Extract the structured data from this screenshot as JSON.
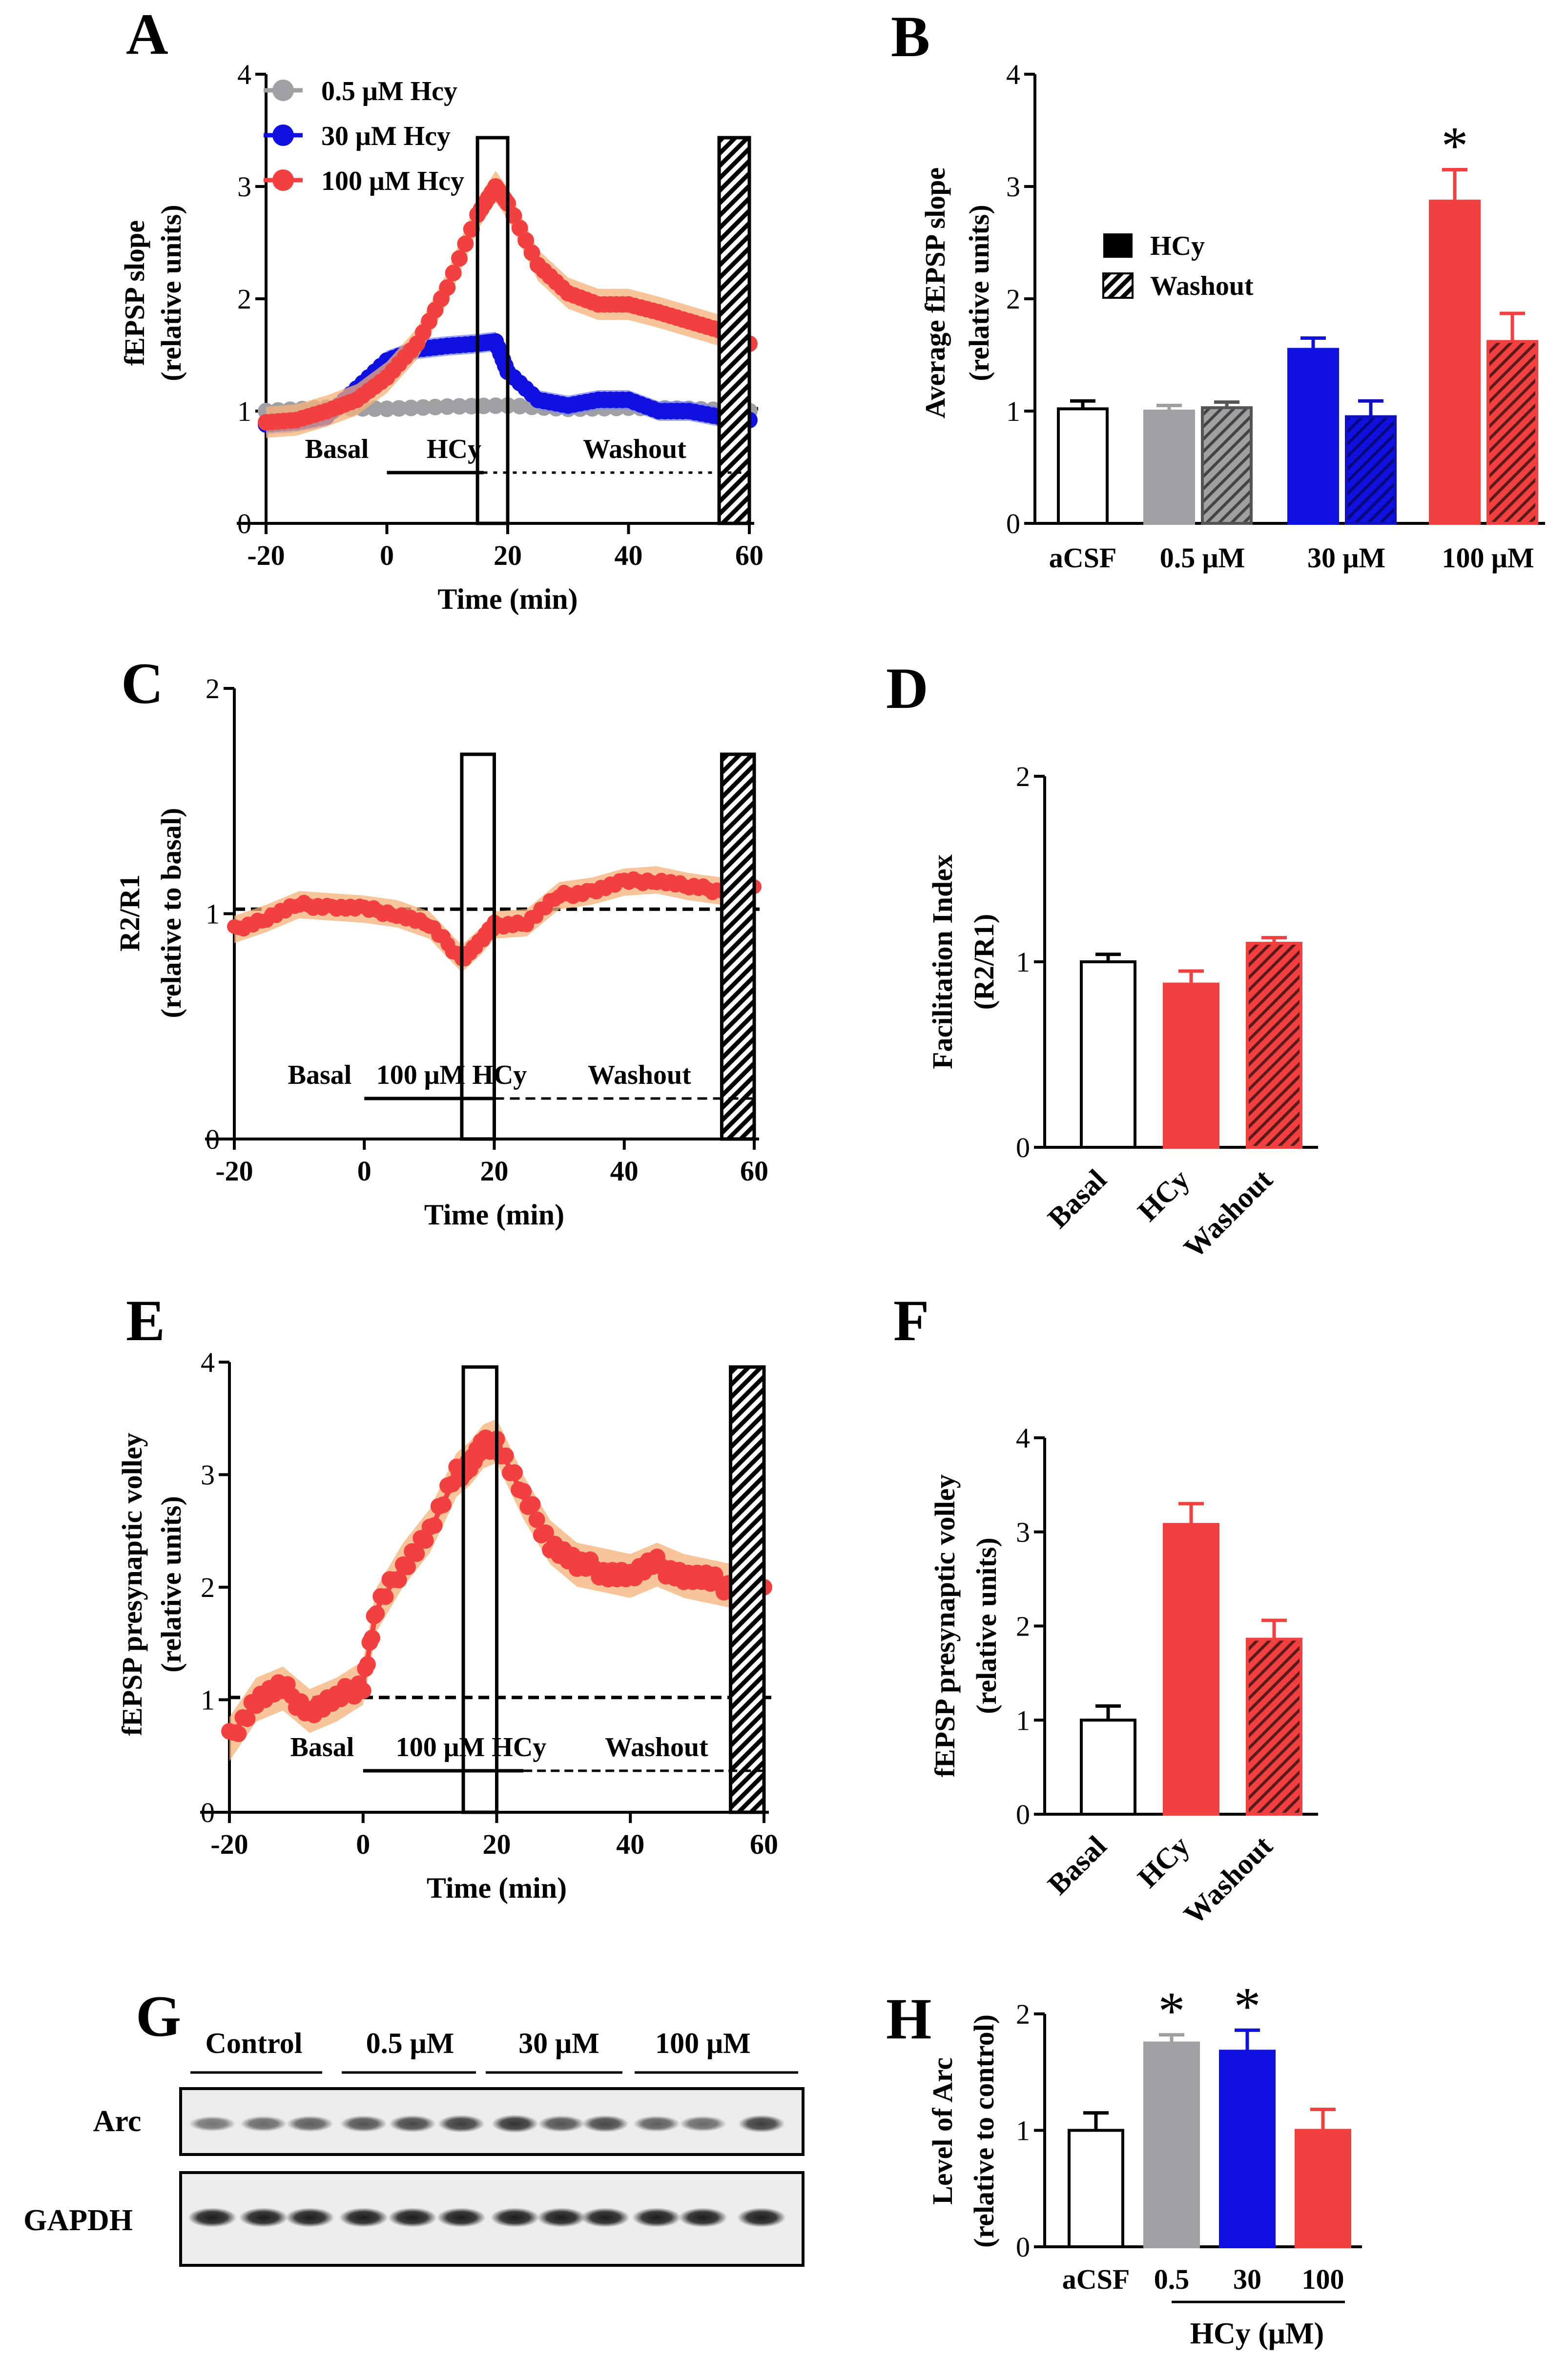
{
  "colors": {
    "grey": "#a0a0a4",
    "blue": "#1010e0",
    "red": "#f24040",
    "band": "#f6b27a"
  },
  "chart_data": [
    {
      "panel": "A",
      "type": "line",
      "xlabel": "Time (min)",
      "ylabel": [
        "fEPSP slope",
        "(relative units)"
      ],
      "xlim": [
        -20,
        60
      ],
      "ylim": [
        0,
        4
      ],
      "xticks": [
        "-20",
        "0",
        "20",
        "40",
        "60"
      ],
      "yticks": [
        "0",
        "1",
        "2",
        "3",
        "4"
      ],
      "legend": [
        "0.5 μM Hcy",
        "30 μM Hcy",
        "100 μM Hcy"
      ],
      "annotations": [
        "Basal",
        "HCy",
        "Washout"
      ],
      "series": [
        {
          "name": "0.5 μM Hcy",
          "color": "#a0a0a4",
          "x": [
            -20,
            -10,
            0,
            10,
            20,
            30,
            40,
            50,
            60
          ],
          "y": [
            1.0,
            1.03,
            1.02,
            1.04,
            1.05,
            1.02,
            1.03,
            1.02,
            1.0
          ]
        },
        {
          "name": "30 μM Hcy",
          "color": "#1010e0",
          "x": [
            -20,
            -15,
            -10,
            -5,
            0,
            5,
            10,
            15,
            18,
            20,
            25,
            30,
            35,
            40,
            45,
            50,
            55,
            60
          ],
          "y": [
            0.88,
            0.9,
            0.95,
            1.2,
            1.45,
            1.55,
            1.58,
            1.6,
            1.62,
            1.35,
            1.1,
            1.05,
            1.1,
            1.1,
            1.0,
            1.0,
            0.95,
            0.92
          ]
        },
        {
          "name": "100 μM Hcy",
          "color": "#f24040",
          "x": [
            -20,
            -15,
            -10,
            -5,
            0,
            5,
            10,
            15,
            18,
            20,
            25,
            30,
            35,
            40,
            45,
            50,
            55,
            60
          ],
          "y": [
            0.9,
            0.92,
            1.0,
            1.1,
            1.3,
            1.6,
            2.1,
            2.75,
            3.0,
            2.85,
            2.3,
            2.05,
            1.95,
            1.95,
            1.88,
            1.8,
            1.72,
            1.6
          ]
        }
      ]
    },
    {
      "panel": "B",
      "type": "bar",
      "ylabel": [
        "Average fEPSP slope",
        "(relative units)"
      ],
      "ylim": [
        0,
        4
      ],
      "yticks": [
        "0",
        "1",
        "2",
        "3",
        "4"
      ],
      "categories": [
        "aCSF",
        "0.5 μM",
        "30 μM",
        "100 μM"
      ],
      "legend": [
        "HCy",
        "Washout"
      ],
      "bars": [
        {
          "group": "aCSF",
          "cond": "aCSF",
          "value": 1.02,
          "err": 0.07
        },
        {
          "group": "0.5 μM",
          "cond": "HCy",
          "value": 1.0,
          "err": 0.05
        },
        {
          "group": "0.5 μM",
          "cond": "Washout",
          "value": 1.03,
          "err": 0.05
        },
        {
          "group": "30 μM",
          "cond": "HCy",
          "value": 1.55,
          "err": 0.1
        },
        {
          "group": "30 μM",
          "cond": "Washout",
          "value": 0.95,
          "err": 0.14
        },
        {
          "group": "100 μM",
          "cond": "HCy",
          "value": 2.87,
          "err": 0.28,
          "sig": "*"
        },
        {
          "group": "100 μM",
          "cond": "Washout",
          "value": 1.62,
          "err": 0.25
        }
      ]
    },
    {
      "panel": "C",
      "type": "line",
      "xlabel": "Time (min)",
      "ylabel": [
        "R2/R1",
        "(relative to basal)"
      ],
      "xlim": [
        -20,
        60
      ],
      "ylim": [
        0,
        2
      ],
      "xticks": [
        "-20",
        "0",
        "20",
        "40",
        "60"
      ],
      "yticks": [
        "0",
        "1",
        "2"
      ],
      "annotations": [
        "Basal",
        "100 μM HCy",
        "Washout"
      ],
      "series": [
        {
          "name": "100 μM HCy",
          "color": "#f24040",
          "x": [
            -20,
            -15,
            -10,
            -5,
            0,
            5,
            10,
            15,
            18,
            20,
            25,
            30,
            35,
            40,
            45,
            50,
            55,
            60
          ],
          "y": [
            0.93,
            0.98,
            1.04,
            1.03,
            1.02,
            1.0,
            0.95,
            0.8,
            0.88,
            0.95,
            0.96,
            1.08,
            1.1,
            1.14,
            1.15,
            1.12,
            1.1,
            1.12
          ]
        }
      ]
    },
    {
      "panel": "D",
      "type": "bar",
      "ylabel": [
        "Facilitation Index",
        "(R2/R1)"
      ],
      "ylim": [
        0,
        2
      ],
      "yticks": [
        "0",
        "1",
        "2"
      ],
      "categories": [
        "Basal",
        "HCy",
        "Washout"
      ],
      "bars": [
        {
          "group": "Basal",
          "cond": "aCSF",
          "value": 1.0,
          "err": 0.04
        },
        {
          "group": "HCy",
          "cond": "HCy",
          "value": 0.88,
          "err": 0.07
        },
        {
          "group": "Washout",
          "cond": "Washout",
          "value": 1.1,
          "err": 0.03
        }
      ]
    },
    {
      "panel": "E",
      "type": "line",
      "xlabel": "Time (min)",
      "ylabel": [
        "fEPSP presynaptic volley",
        "(relative units)"
      ],
      "xlim": [
        -20,
        60
      ],
      "ylim": [
        0,
        4
      ],
      "xticks": [
        "-20",
        "0",
        "20",
        "40",
        "60"
      ],
      "yticks": [
        "0",
        "1",
        "2",
        "3",
        "4"
      ],
      "annotations": [
        "Basal",
        "100 μM HCy",
        "Washout"
      ],
      "series": [
        {
          "name": "100 μM HCy",
          "color": "#f24040",
          "x": [
            -20,
            -16,
            -12,
            -8,
            -4,
            0,
            2,
            6,
            10,
            14,
            16,
            18,
            20,
            24,
            28,
            32,
            36,
            40,
            44,
            48,
            52,
            56,
            60
          ],
          "y": [
            0.65,
            1.0,
            1.1,
            0.9,
            1.0,
            1.15,
            1.8,
            2.2,
            2.5,
            3.0,
            3.1,
            3.25,
            3.3,
            2.8,
            2.4,
            2.2,
            2.15,
            2.1,
            2.2,
            2.1,
            2.05,
            2.0,
            2.0
          ]
        }
      ]
    },
    {
      "panel": "F",
      "type": "bar",
      "ylabel": [
        "fEPSP presynaptic volley",
        "(relative units)"
      ],
      "ylim": [
        0,
        4
      ],
      "yticks": [
        "0",
        "1",
        "2",
        "3",
        "4"
      ],
      "categories": [
        "Basal",
        "HCy",
        "Washout"
      ],
      "bars": [
        {
          "group": "Basal",
          "cond": "aCSF",
          "value": 1.0,
          "err": 0.15
        },
        {
          "group": "HCy",
          "cond": "HCy",
          "value": 3.08,
          "err": 0.22
        },
        {
          "group": "Washout",
          "cond": "Washout",
          "value": 1.86,
          "err": 0.2
        }
      ]
    },
    {
      "panel": "H",
      "type": "bar",
      "ylabel": [
        "Level of Arc",
        "(relative to control)"
      ],
      "ylim": [
        0,
        2
      ],
      "yticks": [
        "0",
        "1",
        "2"
      ],
      "categories": [
        "aCSF",
        "0.5",
        "30",
        "100"
      ],
      "group_label": "HCy (μM)",
      "bars": [
        {
          "group": "aCSF",
          "color": "#ffffff",
          "value": 1.0,
          "err": 0.15
        },
        {
          "group": "0.5",
          "color": "#a0a0a4",
          "value": 1.75,
          "err": 0.07,
          "sig": "*"
        },
        {
          "group": "30",
          "color": "#1010e0",
          "value": 1.68,
          "err": 0.18,
          "sig": "*"
        },
        {
          "group": "100",
          "color": "#f24040",
          "value": 1.0,
          "err": 0.18
        }
      ]
    }
  ],
  "blot": {
    "panel": "G",
    "groups": [
      "Control",
      "0.5 μM",
      "30 μM",
      "100 μM"
    ],
    "rows": [
      "Arc",
      "GAPDH"
    ]
  }
}
